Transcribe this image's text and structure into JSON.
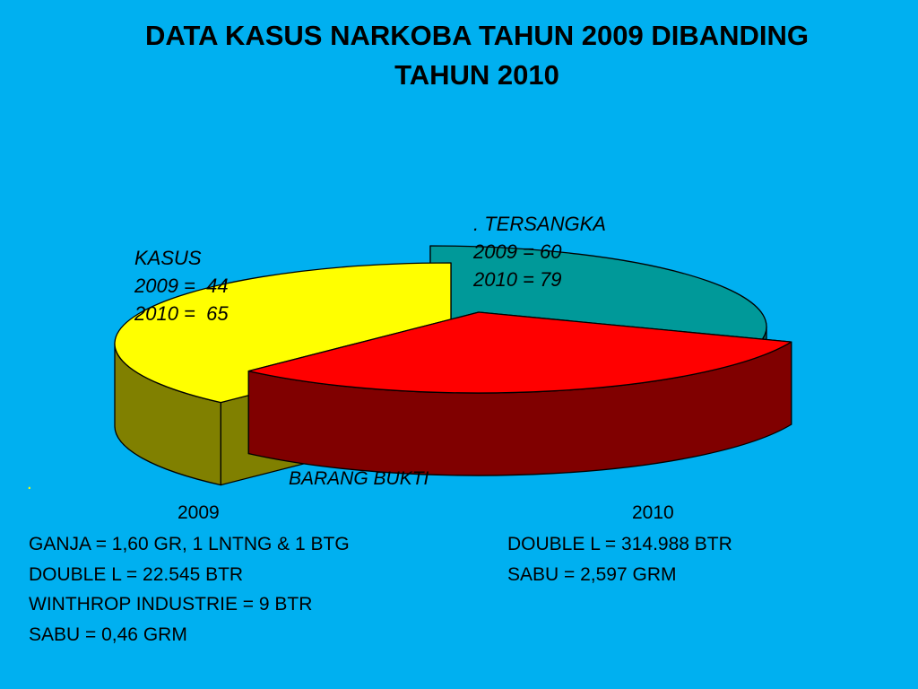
{
  "title": {
    "line1": "DATA KASUS NARKOBA TAHUN 2009 DIBANDING",
    "line2": "TAHUN 2010"
  },
  "chart_data": {
    "type": "pie",
    "variant": "3d-exploded",
    "title": "DATA KASUS NARKOBA TAHUN 2009 DIBANDING TAHUN 2010",
    "categories": [
      "KASUS",
      "TERSANGKA",
      "BARANG BUKTI"
    ],
    "values": [
      31,
      31,
      38
    ],
    "annotations": [
      {
        "category": "KASUS",
        "header": "KASUS",
        "lines": [
          "2009 =  44",
          "2010 =  65"
        ]
      },
      {
        "category": "TERSANGKA",
        "header": ". TERSANGKA",
        "lines": [
          "2009 = 60",
          "2010 = 79"
        ]
      },
      {
        "category": "BARANG BUKTI",
        "header": "BARANG BUKTI",
        "lines": []
      }
    ],
    "colors": {
      "KASUS": {
        "top": "#009999",
        "side": "#006666"
      },
      "TERSANGKA": {
        "top": "#FF0000",
        "side": "#800000"
      },
      "BARANG BUKTI": {
        "top": "#FFFF00",
        "side": "#808000"
      }
    }
  },
  "labels": {
    "kasus": {
      "header": "KASUS",
      "line1": "2009 =  44",
      "line2": "2010 =  65"
    },
    "tersangka": {
      "header": ". TERSANGKA",
      "line1": "2009 = 60",
      "line2": "2010 = 79"
    },
    "barang_bukti": {
      "bullet": ".",
      "header": "BARANG BUKTI"
    }
  },
  "barang_bukti": {
    "year_2009": "2009",
    "year_2010": "2010",
    "items_2009": [
      "GANJA = 1,60 GR, 1 LNTNG & 1 BTG",
      "DOUBLE L = 22.545 BTR",
      "WINTHROP INDUSTRIE = 9 BTR",
      "SABU = 0,46 GRM"
    ],
    "items_2010": [
      "DOUBLE L = 314.988 BTR",
      "SABU = 2,597 GRM"
    ]
  }
}
